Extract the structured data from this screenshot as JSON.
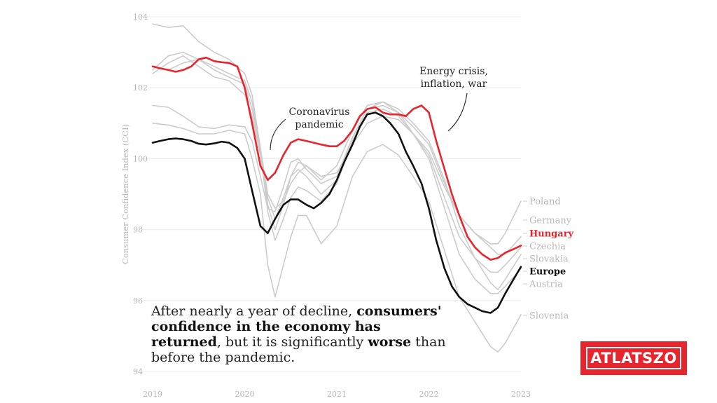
{
  "chart_data": {
    "type": "line",
    "ylabel": "Consumer Confidence Index (CCI)",
    "ylim": [
      94,
      104
    ],
    "xlim": [
      2019,
      2023
    ],
    "yticks": [
      "104",
      "102",
      "100",
      "98",
      "96",
      "94"
    ],
    "xticks": [
      "2019",
      "2020",
      "2021",
      "2022",
      "2023"
    ],
    "grid": true,
    "annotations": [
      {
        "lines": [
          "Coronavirus",
          "pandemic"
        ]
      },
      {
        "lines": [
          "Energy crisis,",
          "inflation, war"
        ]
      }
    ],
    "series": [
      {
        "name": "Poland",
        "color": "#cccccc",
        "x": [
          2019,
          2019.17,
          2019.33,
          2019.5,
          2019.67,
          2019.83,
          2020,
          2020.08,
          2020.17,
          2020.25,
          2020.33,
          2020.42,
          2020.5,
          2020.58,
          2020.67,
          2020.83,
          2021,
          2021.17,
          2021.33,
          2021.5,
          2021.67,
          2021.83,
          2022,
          2022.17,
          2022.33,
          2022.5,
          2022.67,
          2022.75,
          2022.83,
          2023
        ],
        "y": [
          103.8,
          103.7,
          103.75,
          103.3,
          103.0,
          102.8,
          102.4,
          101.8,
          100.3,
          99.0,
          98.6,
          98.8,
          99.3,
          99.6,
          99.8,
          99.5,
          99.6,
          100.4,
          101.0,
          101.2,
          101.1,
          100.7,
          100.2,
          99.2,
          98.4,
          97.9,
          97.6,
          97.6,
          97.9,
          98.8
        ]
      },
      {
        "name": "Germany",
        "color": "#cccccc",
        "x": [
          2019,
          2019.17,
          2019.33,
          2019.5,
          2019.67,
          2019.83,
          2020,
          2020.08,
          2020.17,
          2020.25,
          2020.33,
          2020.42,
          2020.5,
          2020.58,
          2020.67,
          2020.83,
          2021,
          2021.17,
          2021.33,
          2021.5,
          2021.67,
          2021.83,
          2022,
          2022.17,
          2022.33,
          2022.5,
          2022.67,
          2022.75,
          2022.83,
          2023
        ],
        "y": [
          101.5,
          101.45,
          101.2,
          100.9,
          100.85,
          100.95,
          100.9,
          100.5,
          99.5,
          98.6,
          98.5,
          99.2,
          99.9,
          100.0,
          99.7,
          99.3,
          99.5,
          100.6,
          101.4,
          101.5,
          101.3,
          100.9,
          100.4,
          99.3,
          98.4,
          97.9,
          97.5,
          97.3,
          97.3,
          97.8
        ]
      },
      {
        "name": "Czechia",
        "color": "#cccccc",
        "x": [
          2019,
          2019.17,
          2019.33,
          2019.5,
          2019.67,
          2019.83,
          2020,
          2020.08,
          2020.17,
          2020.25,
          2020.33,
          2020.42,
          2020.5,
          2020.58,
          2020.67,
          2020.83,
          2021,
          2021.17,
          2021.33,
          2021.5,
          2021.67,
          2021.83,
          2022,
          2022.17,
          2022.33,
          2022.5,
          2022.67,
          2022.75,
          2022.83,
          2023
        ],
        "y": [
          102.4,
          102.7,
          102.9,
          102.6,
          102.3,
          102.2,
          101.8,
          101.2,
          100.1,
          98.9,
          98.3,
          98.9,
          99.5,
          99.7,
          99.5,
          99.0,
          99.4,
          100.6,
          101.4,
          101.6,
          101.3,
          100.7,
          100.1,
          98.9,
          97.8,
          97.2,
          96.8,
          96.8,
          97.0,
          97.5
        ]
      },
      {
        "name": "Slovakia",
        "color": "#cccccc",
        "x": [
          2019,
          2019.17,
          2019.33,
          2019.5,
          2019.67,
          2019.83,
          2020,
          2020.08,
          2020.17,
          2020.25,
          2020.33,
          2020.42,
          2020.5,
          2020.58,
          2020.67,
          2020.83,
          2021,
          2021.17,
          2021.33,
          2021.5,
          2021.67,
          2021.83,
          2022,
          2022.17,
          2022.33,
          2022.5,
          2022.67,
          2022.75,
          2022.83,
          2023
        ],
        "y": [
          102.6,
          102.5,
          102.7,
          102.8,
          102.5,
          102.3,
          102.1,
          101.4,
          100.2,
          98.7,
          98.0,
          98.7,
          99.5,
          99.9,
          99.8,
          99.4,
          99.8,
          100.8,
          101.5,
          101.6,
          101.4,
          101.0,
          100.5,
          99.4,
          98.1,
          97.2,
          96.5,
          96.3,
          96.6,
          97.3
        ]
      },
      {
        "name": "Austria",
        "color": "#cccccc",
        "x": [
          2019,
          2019.17,
          2019.33,
          2019.5,
          2019.67,
          2019.83,
          2020,
          2020.08,
          2020.17,
          2020.25,
          2020.33,
          2020.42,
          2020.5,
          2020.58,
          2020.67,
          2020.83,
          2021,
          2021.17,
          2021.33,
          2021.5,
          2021.67,
          2021.83,
          2022,
          2022.17,
          2022.33,
          2022.5,
          2022.67,
          2022.75,
          2022.83,
          2023
        ],
        "y": [
          102.5,
          102.9,
          103.0,
          102.8,
          102.6,
          102.4,
          102.2,
          101.6,
          100.2,
          98.5,
          97.7,
          98.3,
          98.9,
          99.2,
          99.1,
          98.8,
          99.3,
          100.5,
          101.3,
          101.4,
          101.2,
          100.7,
          100.0,
          98.6,
          97.3,
          96.6,
          96.2,
          96.2,
          96.4,
          96.9
        ]
      },
      {
        "name": "Slovenia",
        "color": "#cccccc",
        "x": [
          2019,
          2019.17,
          2019.33,
          2019.5,
          2019.67,
          2019.83,
          2020,
          2020.08,
          2020.17,
          2020.25,
          2020.33,
          2020.42,
          2020.5,
          2020.58,
          2020.67,
          2020.83,
          2021,
          2021.17,
          2021.33,
          2021.5,
          2021.67,
          2021.83,
          2022,
          2022.17,
          2022.33,
          2022.5,
          2022.67,
          2022.75,
          2022.83,
          2023
        ],
        "y": [
          101.0,
          100.95,
          100.85,
          100.7,
          100.7,
          100.8,
          100.7,
          100.0,
          99.0,
          97.0,
          96.1,
          97.0,
          97.8,
          98.4,
          98.4,
          97.6,
          98.1,
          99.5,
          100.2,
          100.4,
          100.1,
          99.5,
          98.8,
          97.4,
          96.1,
          95.4,
          94.7,
          94.55,
          94.8,
          95.6
        ]
      },
      {
        "name": "Hungary",
        "color": "#e8252c",
        "x": [
          2019,
          2019.08,
          2019.17,
          2019.25,
          2019.33,
          2019.42,
          2019.5,
          2019.58,
          2019.67,
          2019.75,
          2019.83,
          2019.92,
          2020,
          2020.08,
          2020.17,
          2020.25,
          2020.33,
          2020.42,
          2020.5,
          2020.58,
          2020.67,
          2020.75,
          2020.83,
          2020.92,
          2021,
          2021.08,
          2021.17,
          2021.25,
          2021.33,
          2021.42,
          2021.5,
          2021.58,
          2021.67,
          2021.75,
          2021.83,
          2021.92,
          2022,
          2022.08,
          2022.17,
          2022.25,
          2022.33,
          2022.42,
          2022.5,
          2022.58,
          2022.67,
          2022.75,
          2022.83,
          2022.92,
          2023
        ],
        "y": [
          102.6,
          102.55,
          102.5,
          102.45,
          102.5,
          102.6,
          102.8,
          102.85,
          102.75,
          102.72,
          102.7,
          102.6,
          102.0,
          101.0,
          99.8,
          99.4,
          99.6,
          100.1,
          100.45,
          100.55,
          100.5,
          100.45,
          100.4,
          100.35,
          100.35,
          100.5,
          100.8,
          101.2,
          101.4,
          101.45,
          101.3,
          101.25,
          101.25,
          101.2,
          101.4,
          101.5,
          101.3,
          100.5,
          99.7,
          99.0,
          98.4,
          97.8,
          97.5,
          97.3,
          97.15,
          97.2,
          97.35,
          97.45,
          97.55
        ]
      },
      {
        "name": "Europe",
        "color": "#111111",
        "x": [
          2019,
          2019.08,
          2019.17,
          2019.25,
          2019.33,
          2019.42,
          2019.5,
          2019.58,
          2019.67,
          2019.75,
          2019.83,
          2019.92,
          2020,
          2020.08,
          2020.17,
          2020.25,
          2020.33,
          2020.42,
          2020.5,
          2020.58,
          2020.67,
          2020.75,
          2020.83,
          2020.92,
          2021,
          2021.08,
          2021.17,
          2021.25,
          2021.33,
          2021.42,
          2021.5,
          2021.58,
          2021.67,
          2021.75,
          2021.83,
          2021.92,
          2022,
          2022.08,
          2022.17,
          2022.25,
          2022.33,
          2022.42,
          2022.5,
          2022.58,
          2022.67,
          2022.75,
          2022.83,
          2022.92,
          2023
        ],
        "y": [
          100.45,
          100.5,
          100.55,
          100.57,
          100.55,
          100.5,
          100.42,
          100.4,
          100.43,
          100.48,
          100.45,
          100.3,
          100.0,
          99.1,
          98.1,
          97.9,
          98.3,
          98.7,
          98.85,
          98.85,
          98.7,
          98.6,
          98.75,
          99.0,
          99.4,
          99.9,
          100.4,
          100.9,
          101.25,
          101.3,
          101.2,
          101.0,
          100.7,
          100.2,
          99.8,
          99.3,
          98.6,
          97.7,
          96.9,
          96.4,
          96.1,
          95.9,
          95.8,
          95.7,
          95.65,
          95.8,
          96.2,
          96.6,
          96.95
        ]
      }
    ]
  },
  "caption": {
    "p1": "After nearly a year of decline, ",
    "b1": "consumers' confidence in the economy has returned",
    "p2": ", but it is significantly ",
    "b2": "worse",
    "p3": " than before the pandemic."
  },
  "logo": {
    "text": "ATLATSZO"
  }
}
